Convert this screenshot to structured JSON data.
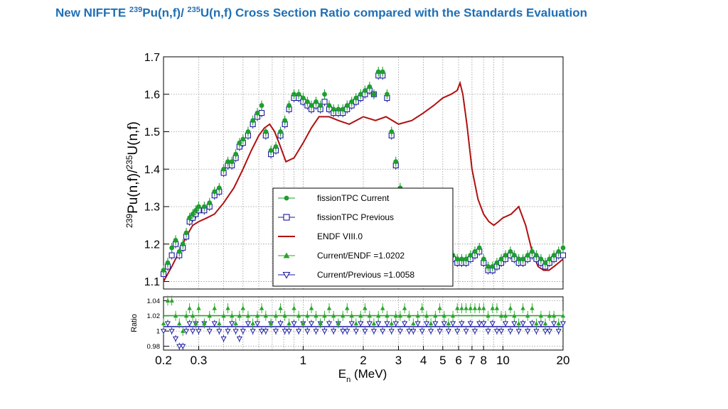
{
  "slide": {
    "title_part1": "New NIFFTE ",
    "title_sup1": "239",
    "title_part2": "Pu(n,f)/ ",
    "title_sup2": "235",
    "title_part3": "U(n,f) Cross Section Ratio compared with the Standards Evaluation"
  },
  "colors": {
    "title": "#1f6fb4",
    "current": "#1e9e2e",
    "previous": "#1a1aa0",
    "endf": "#b01010",
    "ratio_current": "#2ba52b",
    "ratio_previous": "#1a1aa0"
  },
  "chart_data": [
    {
      "type": "scatter",
      "panel": "main",
      "ylabel": {
        "sup1": "239",
        "part1": "Pu(n,f)/",
        "sup2": "235",
        "part2": "U(n,f)"
      },
      "xscale": "log",
      "xlim": [
        0.2,
        20
      ],
      "ylim": [
        1.08,
        1.7
      ],
      "yticks": [
        "1.1",
        "1.2",
        "1.3",
        "1.4",
        "1.5",
        "1.6",
        "1.7"
      ],
      "grid": true,
      "legend_position": "lower-center",
      "legend": [
        {
          "label": "fissionTPC Current",
          "marker": "filled-circle"
        },
        {
          "label": "fissionTPC Previous",
          "marker": "open-square"
        },
        {
          "label": "ENDF VIII.0",
          "marker": "line"
        },
        {
          "label": "Current/ENDF =1.0202",
          "marker": "filled-triangle"
        },
        {
          "label": "Current/Previous =1.0058",
          "marker": "open-inverted-triangle"
        }
      ],
      "series": [
        {
          "name": "fissionTPC Current",
          "x": [
            0.2,
            0.21,
            0.22,
            0.23,
            0.24,
            0.25,
            0.26,
            0.27,
            0.28,
            0.29,
            0.3,
            0.32,
            0.34,
            0.36,
            0.38,
            0.4,
            0.42,
            0.44,
            0.46,
            0.48,
            0.5,
            0.53,
            0.56,
            0.59,
            0.62,
            0.65,
            0.69,
            0.73,
            0.77,
            0.81,
            0.85,
            0.9,
            0.95,
            1.0,
            1.05,
            1.1,
            1.16,
            1.22,
            1.28,
            1.35,
            1.42,
            1.5,
            1.58,
            1.66,
            1.75,
            1.84,
            1.94,
            2.04,
            2.15,
            2.26,
            2.38,
            2.5,
            2.63,
            2.77,
            2.91,
            3.06,
            3.22,
            3.39,
            3.56,
            3.75,
            3.94,
            4.15,
            4.36,
            4.59,
            4.83,
            5.08,
            5.34,
            5.62,
            5.91,
            6.22,
            6.54,
            6.88,
            7.24,
            7.62,
            8.01,
            8.43,
            8.87,
            9.33,
            9.81,
            10.3,
            10.9,
            11.4,
            12.0,
            12.6,
            13.3,
            14.0,
            14.7,
            15.5,
            16.3,
            17.1,
            18.0,
            19.0,
            20.0
          ],
          "y": [
            1.13,
            1.15,
            1.19,
            1.21,
            1.18,
            1.2,
            1.23,
            1.27,
            1.28,
            1.29,
            1.3,
            1.3,
            1.31,
            1.34,
            1.35,
            1.4,
            1.42,
            1.42,
            1.44,
            1.47,
            1.48,
            1.5,
            1.53,
            1.55,
            1.57,
            1.5,
            1.45,
            1.46,
            1.5,
            1.53,
            1.57,
            1.6,
            1.6,
            1.59,
            1.58,
            1.57,
            1.58,
            1.57,
            1.6,
            1.57,
            1.56,
            1.56,
            1.56,
            1.57,
            1.58,
            1.59,
            1.6,
            1.61,
            1.62,
            1.6,
            1.66,
            1.66,
            1.6,
            1.5,
            1.42,
            1.35,
            1.33,
            1.31,
            1.3,
            1.3,
            1.32,
            1.33,
            1.33,
            1.29,
            1.23,
            1.2,
            1.18,
            1.17,
            1.16,
            1.16,
            1.16,
            1.17,
            1.18,
            1.19,
            1.16,
            1.14,
            1.14,
            1.15,
            1.16,
            1.17,
            1.18,
            1.17,
            1.16,
            1.16,
            1.17,
            1.18,
            1.17,
            1.16,
            1.15,
            1.16,
            1.17,
            1.18,
            1.19
          ]
        },
        {
          "name": "fissionTPC Previous",
          "x": [
            0.2,
            0.21,
            0.22,
            0.23,
            0.24,
            0.25,
            0.26,
            0.27,
            0.28,
            0.29,
            0.3,
            0.32,
            0.34,
            0.36,
            0.38,
            0.4,
            0.42,
            0.44,
            0.46,
            0.48,
            0.5,
            0.53,
            0.56,
            0.59,
            0.62,
            0.65,
            0.69,
            0.73,
            0.77,
            0.81,
            0.85,
            0.9,
            0.95,
            1.0,
            1.05,
            1.1,
            1.16,
            1.22,
            1.28,
            1.35,
            1.42,
            1.5,
            1.58,
            1.66,
            1.75,
            1.84,
            1.94,
            2.04,
            2.15,
            2.26,
            2.38,
            2.5,
            2.63,
            2.77,
            2.91,
            3.06,
            3.22,
            3.39,
            3.56,
            3.75,
            3.94,
            4.15,
            4.36,
            4.59,
            4.83,
            5.08,
            5.34,
            5.62,
            5.91,
            6.22,
            6.54,
            6.88,
            7.24,
            7.62,
            8.01,
            8.43,
            8.87,
            9.33,
            9.81,
            10.3,
            10.9,
            11.4,
            12.0,
            12.6,
            13.3,
            14.0,
            14.7,
            15.5,
            16.3,
            17.1,
            18.0,
            19.0,
            20.0
          ],
          "y": [
            1.12,
            1.14,
            1.17,
            1.2,
            1.17,
            1.19,
            1.22,
            1.26,
            1.27,
            1.28,
            1.29,
            1.29,
            1.3,
            1.33,
            1.34,
            1.39,
            1.41,
            1.41,
            1.43,
            1.46,
            1.47,
            1.49,
            1.52,
            1.54,
            1.55,
            1.49,
            1.44,
            1.45,
            1.49,
            1.52,
            1.56,
            1.59,
            1.59,
            1.58,
            1.57,
            1.56,
            1.57,
            1.56,
            1.58,
            1.56,
            1.55,
            1.55,
            1.55,
            1.56,
            1.57,
            1.58,
            1.59,
            1.6,
            1.61,
            1.6,
            1.65,
            1.65,
            1.59,
            1.49,
            1.41,
            1.34,
            1.32,
            1.3,
            1.29,
            1.29,
            1.31,
            1.32,
            1.32,
            1.28,
            1.22,
            1.19,
            1.17,
            1.16,
            1.15,
            1.15,
            1.15,
            1.16,
            1.17,
            1.18,
            1.15,
            1.13,
            1.13,
            1.14,
            1.15,
            1.16,
            1.17,
            1.16,
            1.15,
            1.15,
            1.16,
            1.17,
            1.16,
            1.15,
            1.14,
            1.15,
            1.16,
            1.17,
            1.17
          ]
        },
        {
          "name": "ENDF VIII.0",
          "x": [
            0.2,
            0.22,
            0.24,
            0.26,
            0.28,
            0.3,
            0.33,
            0.36,
            0.4,
            0.45,
            0.5,
            0.55,
            0.6,
            0.64,
            0.68,
            0.72,
            0.77,
            0.82,
            0.9,
            1.0,
            1.1,
            1.2,
            1.35,
            1.5,
            1.7,
            2.0,
            2.3,
            2.6,
            3.0,
            3.5,
            4.0,
            4.5,
            5.0,
            5.5,
            5.9,
            6.1,
            6.3,
            6.6,
            7.0,
            7.5,
            8.0,
            8.5,
            9.0,
            9.5,
            10.0,
            11.0,
            12.0,
            13.0,
            14.0,
            15.0,
            16.0,
            17.0,
            18.0,
            19.0,
            20.0
          ],
          "y": [
            1.1,
            1.14,
            1.18,
            1.22,
            1.25,
            1.26,
            1.27,
            1.28,
            1.31,
            1.35,
            1.4,
            1.45,
            1.49,
            1.51,
            1.52,
            1.5,
            1.46,
            1.42,
            1.43,
            1.47,
            1.51,
            1.54,
            1.54,
            1.53,
            1.52,
            1.54,
            1.53,
            1.54,
            1.52,
            1.53,
            1.55,
            1.57,
            1.59,
            1.6,
            1.61,
            1.63,
            1.6,
            1.52,
            1.4,
            1.32,
            1.28,
            1.26,
            1.25,
            1.26,
            1.27,
            1.28,
            1.3,
            1.25,
            1.18,
            1.14,
            1.13,
            1.13,
            1.14,
            1.15,
            1.16
          ]
        }
      ]
    },
    {
      "type": "scatter",
      "panel": "ratio",
      "ylabel": "Ratio",
      "xlabel": {
        "main": "E",
        "sub": "n",
        "unit": " (MeV)"
      },
      "xscale": "log",
      "xlim": [
        0.2,
        20
      ],
      "ylim": [
        0.975,
        1.045
      ],
      "yticks": [
        "0.98",
        "1",
        "1.02",
        "1.04"
      ],
      "xticks": [
        "0.2",
        "0.3",
        "1",
        "2",
        "3",
        "4",
        "5",
        "6",
        "7",
        "8",
        "10",
        "20"
      ],
      "grid": true,
      "series": [
        {
          "name": "Current/ENDF",
          "x": [
            0.2,
            0.21,
            0.22,
            0.23,
            0.24,
            0.25,
            0.26,
            0.27,
            0.28,
            0.29,
            0.3,
            0.32,
            0.34,
            0.36,
            0.38,
            0.4,
            0.42,
            0.44,
            0.46,
            0.48,
            0.5,
            0.53,
            0.56,
            0.59,
            0.62,
            0.65,
            0.69,
            0.73,
            0.77,
            0.81,
            0.85,
            0.9,
            0.95,
            1.0,
            1.05,
            1.1,
            1.16,
            1.22,
            1.28,
            1.35,
            1.42,
            1.5,
            1.58,
            1.66,
            1.75,
            1.84,
            1.94,
            2.04,
            2.15,
            2.26,
            2.38,
            2.5,
            2.63,
            2.77,
            2.91,
            3.06,
            3.22,
            3.39,
            3.56,
            3.75,
            3.94,
            4.15,
            4.36,
            4.59,
            4.83,
            5.08,
            5.34,
            5.62,
            5.91,
            6.22,
            6.54,
            6.88,
            7.24,
            7.62,
            8.01,
            8.43,
            8.87,
            9.33,
            9.81,
            10.3,
            10.9,
            11.4,
            12.0,
            12.6,
            13.3,
            14.0,
            14.7,
            15.5,
            16.3,
            17.1,
            18.0,
            19.0,
            20.0
          ],
          "y": [
            1.01,
            1.04,
            1.04,
            1.02,
            1.01,
            1.0,
            1.02,
            1.03,
            1.02,
            1.01,
            1.03,
            1.01,
            1.02,
            1.03,
            1.01,
            1.02,
            1.03,
            1.02,
            1.01,
            1.02,
            1.03,
            1.02,
            1.01,
            1.02,
            1.03,
            1.02,
            1.01,
            1.02,
            1.03,
            1.02,
            1.01,
            1.03,
            1.02,
            1.01,
            1.02,
            1.03,
            1.02,
            1.01,
            1.02,
            1.03,
            1.02,
            1.01,
            1.02,
            1.03,
            1.02,
            1.01,
            1.02,
            1.03,
            1.02,
            1.01,
            1.02,
            1.03,
            1.02,
            1.01,
            1.02,
            1.02,
            1.03,
            1.02,
            1.01,
            1.02,
            1.03,
            1.02,
            1.01,
            1.02,
            1.03,
            1.02,
            1.01,
            1.02,
            1.03,
            1.03,
            1.03,
            1.03,
            1.03,
            1.03,
            1.03,
            1.02,
            1.03,
            1.03,
            1.02,
            1.02,
            1.03,
            1.02,
            1.01,
            1.03,
            1.02,
            1.03,
            1.01,
            1.02,
            1.01,
            1.02,
            1.02,
            1.01,
            1.02
          ]
        },
        {
          "name": "Current/Previous",
          "x": [
            0.2,
            0.21,
            0.22,
            0.23,
            0.24,
            0.25,
            0.26,
            0.27,
            0.28,
            0.29,
            0.3,
            0.32,
            0.34,
            0.36,
            0.38,
            0.4,
            0.42,
            0.44,
            0.46,
            0.48,
            0.5,
            0.53,
            0.56,
            0.59,
            0.62,
            0.65,
            0.69,
            0.73,
            0.77,
            0.81,
            0.85,
            0.9,
            0.95,
            1.0,
            1.05,
            1.1,
            1.16,
            1.22,
            1.28,
            1.35,
            1.42,
            1.5,
            1.58,
            1.66,
            1.75,
            1.84,
            1.94,
            2.04,
            2.15,
            2.26,
            2.38,
            2.5,
            2.63,
            2.77,
            2.91,
            3.06,
            3.22,
            3.39,
            3.56,
            3.75,
            3.94,
            4.15,
            4.36,
            4.59,
            4.83,
            5.08,
            5.34,
            5.62,
            5.91,
            6.22,
            6.54,
            6.88,
            7.24,
            7.62,
            8.01,
            8.43,
            8.87,
            9.33,
            9.81,
            10.3,
            10.9,
            11.4,
            12.0,
            12.6,
            13.3,
            14.0,
            14.7,
            15.5,
            16.3,
            17.1,
            18.0,
            19.0,
            20.0
          ],
          "y": [
            1.0,
            1.01,
            1.0,
            0.99,
            0.98,
            0.98,
            1.0,
            1.01,
            1.0,
            1.01,
            1.0,
            1.01,
            1.0,
            1.01,
            1.0,
            0.99,
            1.0,
            1.01,
            1.0,
            0.99,
            1.0,
            1.01,
            1.0,
            1.01,
            1.0,
            1.0,
            1.01,
            1.0,
            1.01,
            1.0,
            1.0,
            1.01,
            1.0,
            1.01,
            1.0,
            1.01,
            1.0,
            1.01,
            1.0,
            1.01,
            1.0,
            1.01,
            1.0,
            1.0,
            1.01,
            1.0,
            1.01,
            1.0,
            1.01,
            1.0,
            1.01,
            1.0,
            1.01,
            1.0,
            1.01,
            1.0,
            1.01,
            1.0,
            1.0,
            1.01,
            1.0,
            1.01,
            1.0,
            1.01,
            1.0,
            1.01,
            1.0,
            1.01,
            1.0,
            1.01,
            1.0,
            1.01,
            1.0,
            1.01,
            1.01,
            1.0,
            1.01,
            1.0,
            1.0,
            1.01,
            1.0,
            1.01,
            1.0,
            1.01,
            1.0,
            1.01,
            1.0,
            1.01,
            1.0,
            1.0,
            1.01,
            1.0,
            1.01
          ]
        }
      ]
    }
  ]
}
